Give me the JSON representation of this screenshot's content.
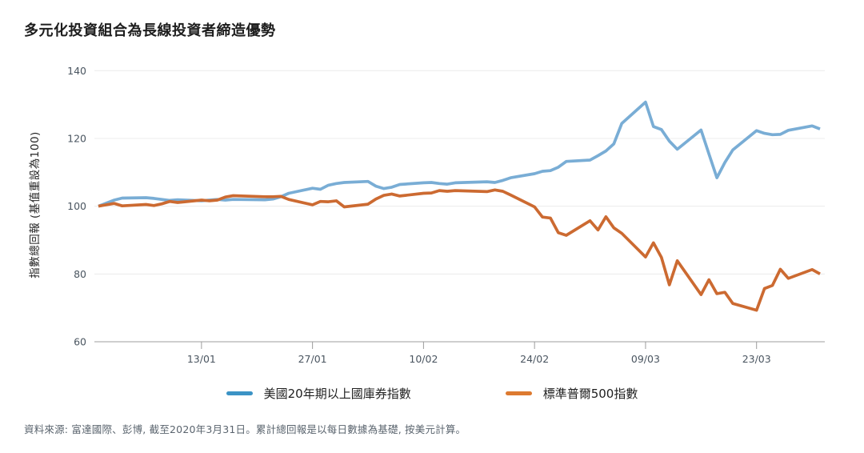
{
  "title": "多元化投資組合為長線投資者締造優勢",
  "source_note": "資料來源: 富達國際、彭博, 截至2020年3月31日。累計總回報是以每日數據為基礎, 按美元計算。",
  "colors": {
    "treasury_line": "#79add5",
    "sp500_line": "#cc6a31",
    "treasury_legend": "#3b93c5",
    "sp500_legend": "#dd7a30",
    "gridline": "#ececec",
    "axis": "#9c9c9c",
    "tick_label": "#4a5560"
  },
  "chart_data": {
    "type": "line",
    "title": "多元化投資組合為長線投資者締造優勢",
    "xlabel": "",
    "ylabel": "指數總回報 (基值重設為100)",
    "ylim": [
      60,
      140
    ],
    "yticks": [
      60,
      80,
      100,
      120,
      140
    ],
    "grid": "horizontal",
    "legend_position": "bottom-center",
    "x_axis_note": "calendar days since 31/12/2019, data at trading days through 31/03/2020",
    "xlim": [
      0,
      91
    ],
    "xticks": [
      {
        "label": "13/01",
        "day": 13
      },
      {
        "label": "27/01",
        "day": 27
      },
      {
        "label": "10/02",
        "day": 41
      },
      {
        "label": "24/02",
        "day": 55
      },
      {
        "label": "09/03",
        "day": 69
      },
      {
        "label": "23/03",
        "day": 83
      }
    ],
    "x": [
      0,
      2,
      3,
      6,
      7,
      8,
      9,
      10,
      13,
      14,
      15,
      16,
      17,
      21,
      22,
      23,
      24,
      27,
      28,
      29,
      30,
      31,
      34,
      35,
      36,
      37,
      38,
      41,
      42,
      43,
      44,
      45,
      49,
      50,
      51,
      52,
      55,
      56,
      57,
      58,
      59,
      62,
      63,
      64,
      65,
      66,
      69,
      70,
      71,
      72,
      73,
      76,
      77,
      78,
      79,
      80,
      83,
      84,
      85,
      86,
      87,
      90,
      91
    ],
    "series": [
      {
        "name": "美國20年期以上國庫券指數",
        "line_color": "#79add5",
        "legend_color": "#3b93c5",
        "values": [
          100.0,
          101.8,
          102.4,
          102.5,
          102.3,
          102.0,
          101.7,
          101.9,
          101.6,
          101.8,
          102.0,
          101.8,
          102.0,
          101.9,
          102.1,
          102.8,
          103.8,
          105.3,
          105.0,
          106.2,
          106.7,
          107.0,
          107.3,
          105.9,
          105.2,
          105.6,
          106.4,
          106.9,
          107.0,
          106.7,
          106.5,
          106.9,
          107.2,
          107.0,
          107.6,
          108.4,
          109.6,
          110.3,
          110.5,
          111.5,
          113.2,
          113.6,
          114.9,
          116.3,
          118.4,
          124.4,
          130.7,
          123.5,
          122.6,
          119.2,
          116.8,
          122.5,
          115.4,
          108.4,
          112.9,
          116.6,
          122.3,
          121.5,
          121.1,
          121.2,
          122.4,
          123.7,
          122.8
        ]
      },
      {
        "name": "標準普爾500指數",
        "line_color": "#cc6a31",
        "legend_color": "#dd7a30",
        "values": [
          100.0,
          100.8,
          100.1,
          100.5,
          100.2,
          100.7,
          101.4,
          101.1,
          101.8,
          101.6,
          101.8,
          102.7,
          103.1,
          102.8,
          102.8,
          102.9,
          102.0,
          100.4,
          101.4,
          101.3,
          101.6,
          99.8,
          100.6,
          102.1,
          103.2,
          103.6,
          103.0,
          103.8,
          103.9,
          104.6,
          104.4,
          104.6,
          104.3,
          104.8,
          104.4,
          103.3,
          99.8,
          96.8,
          96.5,
          92.2,
          91.4,
          95.7,
          93.0,
          96.9,
          93.6,
          92.0,
          85.0,
          89.2,
          84.9,
          76.8,
          83.9,
          73.9,
          78.3,
          74.2,
          74.6,
          71.3,
          69.3,
          75.7,
          76.6,
          81.4,
          78.7,
          81.3,
          80.0
        ]
      }
    ]
  }
}
